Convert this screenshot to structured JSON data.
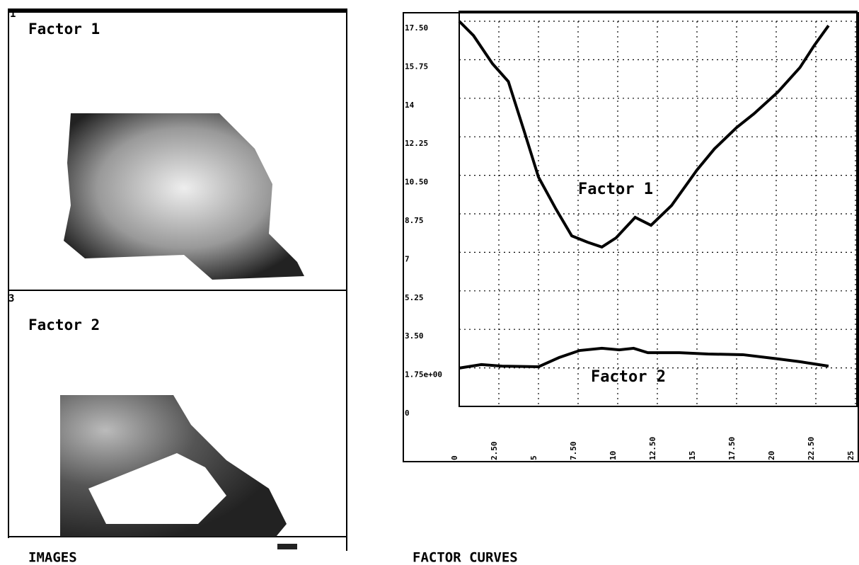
{
  "panels": {
    "top_number": "1",
    "top_label": "Factor 1",
    "bottom_number": "3",
    "bottom_label": "Factor 2",
    "left_caption": "IMAGES",
    "right_caption": "FACTOR CURVES"
  },
  "chart_data": {
    "type": "line",
    "xlim": [
      0,
      25
    ],
    "ylim": [
      0,
      17.5
    ],
    "xticks": [
      0,
      {
        "value": 2.5,
        "label": "2.50"
      },
      5,
      {
        "value": 7.5,
        "label": "7.50"
      },
      10,
      {
        "value": 12.5,
        "label": "12.50"
      },
      15,
      {
        "value": 17.5,
        "label": "17.50"
      },
      20,
      {
        "value": 22.5,
        "label": "22.50"
      },
      25
    ],
    "yticks": [
      0,
      {
        "value": 1.75,
        "label": "1.75e+00"
      },
      {
        "value": 3.5,
        "label": "3.50"
      },
      5.25,
      7,
      8.75,
      {
        "value": 10.5,
        "label": "10.50"
      },
      12.25,
      14,
      15.75,
      {
        "value": 17.5,
        "label": "17.50"
      }
    ],
    "grid": true,
    "annotations": [
      "Factor 1",
      "Factor 2"
    ],
    "series": [
      {
        "color": "#000000",
        "x": [
          0,
          0.9,
          2.1,
          3.1,
          4.1,
          5.0,
          6.1,
          7.1,
          8.1,
          9.0,
          9.9,
          11.1,
          12.1,
          13.4,
          15.0,
          16.1,
          17.5,
          18.6,
          20.1,
          21.5,
          22.4,
          23.3
        ],
        "values": [
          17.5,
          16.85,
          15.57,
          14.76,
          12.5,
          10.42,
          8.97,
          7.75,
          7.46,
          7.24,
          7.66,
          8.59,
          8.23,
          9.13,
          10.74,
          11.7,
          12.67,
          13.3,
          14.28,
          15.4,
          16.4,
          17.3
        ]
      },
      {
        "color": "#000000",
        "x": [
          0,
          1.4,
          2.7,
          5.0,
          6.3,
          7.6,
          9.0,
          10.1,
          11.0,
          11.9,
          13.9,
          15.7,
          17.9,
          20.1,
          21.5,
          23.3
        ],
        "values": [
          1.74,
          1.9,
          1.83,
          1.8,
          2.22,
          2.54,
          2.64,
          2.57,
          2.64,
          2.44,
          2.44,
          2.38,
          2.35,
          2.16,
          2.03,
          1.83
        ]
      }
    ]
  }
}
